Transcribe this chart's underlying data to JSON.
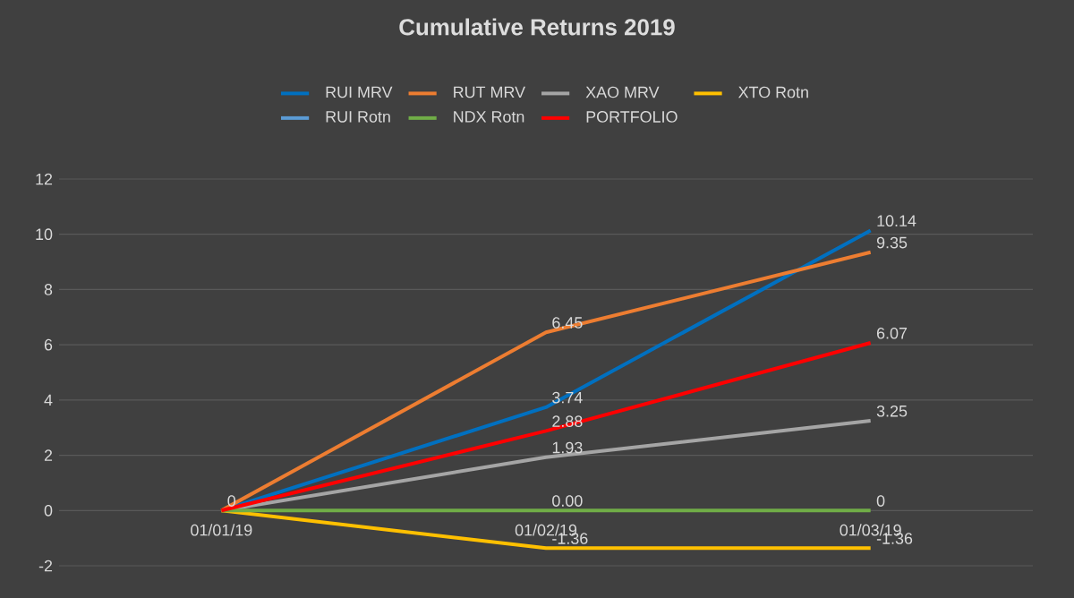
{
  "chart_data": {
    "type": "line",
    "title": "Cumulative Returns 2019",
    "categories": [
      "01/01/19",
      "01/02/19",
      "01/03/19"
    ],
    "series": [
      {
        "name": "RUI MRV",
        "color": "#0070c0",
        "values": [
          0,
          3.74,
          10.14
        ],
        "value_labels": [
          null,
          "3.74",
          "10.14"
        ]
      },
      {
        "name": "RUT MRV",
        "color": "#ed7d31",
        "values": [
          0,
          6.45,
          9.35
        ],
        "value_labels": [
          null,
          "6.45",
          "9.35"
        ]
      },
      {
        "name": "XAO MRV",
        "color": "#a5a5a5",
        "values": [
          0,
          1.93,
          3.25
        ],
        "value_labels": [
          null,
          "1.93",
          "3.25"
        ]
      },
      {
        "name": "XTO Rotn",
        "color": "#ffc000",
        "values": [
          0,
          -1.36,
          -1.36
        ],
        "value_labels": [
          null,
          "-1.36",
          "-1.36"
        ]
      },
      {
        "name": "RUI Rotn",
        "color": "#5b9bd5",
        "values": [
          null,
          null,
          null
        ]
      },
      {
        "name": "NDX Rotn",
        "color": "#70ad47",
        "values": [
          0,
          0,
          0
        ],
        "value_labels": [
          "0",
          "0.00",
          "0"
        ]
      },
      {
        "name": "PORTFOLIO",
        "color": "#ff0000",
        "values": [
          0,
          2.88,
          6.07
        ],
        "value_labels": [
          null,
          "2.88",
          "6.07"
        ]
      }
    ],
    "ylim": [
      -2,
      12
    ],
    "yticks": [
      -2,
      0,
      2,
      4,
      6,
      8,
      10,
      12
    ],
    "grid": "y",
    "legend": "top",
    "marker": "none",
    "line_style": "solid"
  }
}
